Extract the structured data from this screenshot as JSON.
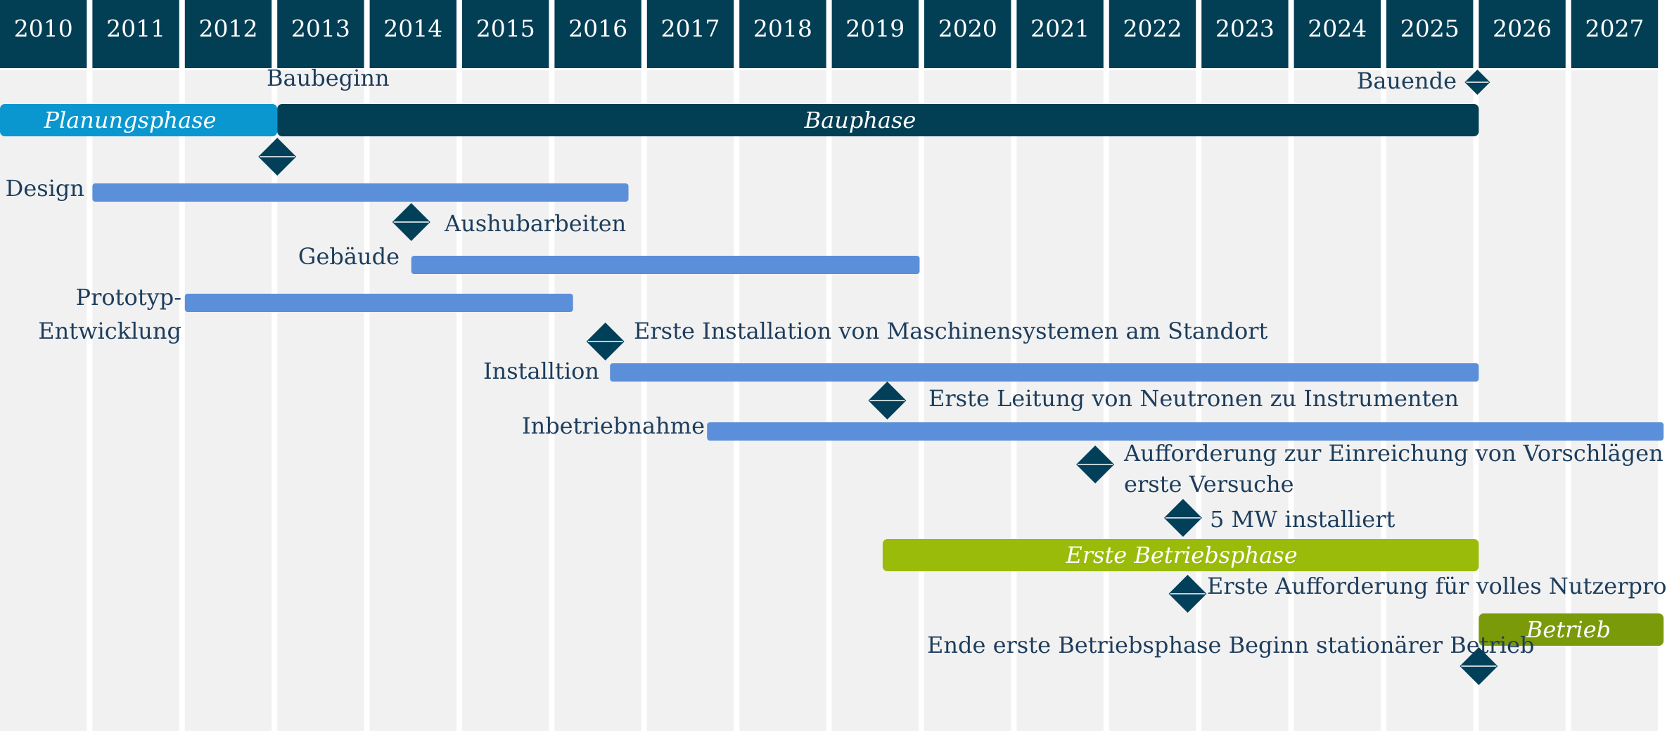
{
  "chart_data": {
    "type": "gantt",
    "years": [
      "2010",
      "2011",
      "2012",
      "2013",
      "2014",
      "2015",
      "2016",
      "2017",
      "2018",
      "2019",
      "2020",
      "2021",
      "2022",
      "2023",
      "2024",
      "2025",
      "2026",
      "2027"
    ],
    "phases": [
      {
        "id": "planungsphase",
        "name": "Planungsphase",
        "start": 2010.0,
        "end": 2013.0,
        "color": "#0a97d0"
      },
      {
        "id": "bauphase",
        "name": "Bauphase",
        "start": 2013.0,
        "end": 2026.0,
        "color": "#023e54"
      },
      {
        "id": "erste-betriebsphase",
        "name": "Erste Betriebsphase",
        "start": 2019.55,
        "end": 2026.0,
        "color": "#9bbb0b"
      },
      {
        "id": "betrieb",
        "name": "Betrieb",
        "start": 2026.0,
        "end": 2028.0,
        "color": "#7a9a0a"
      }
    ],
    "tasks": [
      {
        "id": "design",
        "name": "Design",
        "start": 2011.0,
        "end": 2016.8
      },
      {
        "id": "gebaeude",
        "name": "Gebäude",
        "start": 2014.45,
        "end": 2019.95
      },
      {
        "id": "prototyp",
        "name": "Prototyp-Entwicklung",
        "lines": [
          "Prototyp-",
          "Entwicklung"
        ],
        "start": 2012.0,
        "end": 2016.2
      },
      {
        "id": "installtion",
        "name": "Installtion",
        "start": 2016.6,
        "end": 2026.0
      },
      {
        "id": "inbetriebnahme",
        "name": "Inbetriebnahme",
        "start": 2017.65,
        "end": 2028.0
      }
    ],
    "milestones": [
      {
        "id": "baubeginn",
        "name": "Baubeginn",
        "date": 2013.0
      },
      {
        "id": "bauende",
        "name": "Bauende",
        "date": 2026.0
      },
      {
        "id": "aushubarbeiten",
        "name": "Aushubarbeiten",
        "date": 2014.45
      },
      {
        "id": "erste-installation",
        "name": "Erste Installation von Maschinensystemen am Standort",
        "date": 2016.55
      },
      {
        "id": "erste-leitung",
        "name": "Erste Leitung von Neutronen zu Instrumenten",
        "date": 2019.6
      },
      {
        "id": "aufforderung",
        "name": "Aufforderung zur Einreichung von Vorschlägen für erste Versuche",
        "lines": [
          "Aufforderung zur Einreichung von Vorschlägen für",
          "erste Versuche"
        ],
        "date": 2021.85
      },
      {
        "id": "5mw",
        "name": "5 MW installiert",
        "date": 2022.8
      },
      {
        "id": "nutzerprogramm",
        "name": "Erste Aufforderung für volles Nutzerprogramm",
        "date": 2022.85
      },
      {
        "id": "ende-erste-betriebsphase",
        "name": "Ende erste Betriebsphase Beginn stationärer Betrieb",
        "date": 2026.0
      }
    ],
    "colors": {
      "header": "#023e54",
      "task_bar": "#5b8fd9",
      "milestone": "#02405a",
      "label_text": "#1d3d5c",
      "background_column": "#f1f1f1"
    },
    "grid": true
  }
}
